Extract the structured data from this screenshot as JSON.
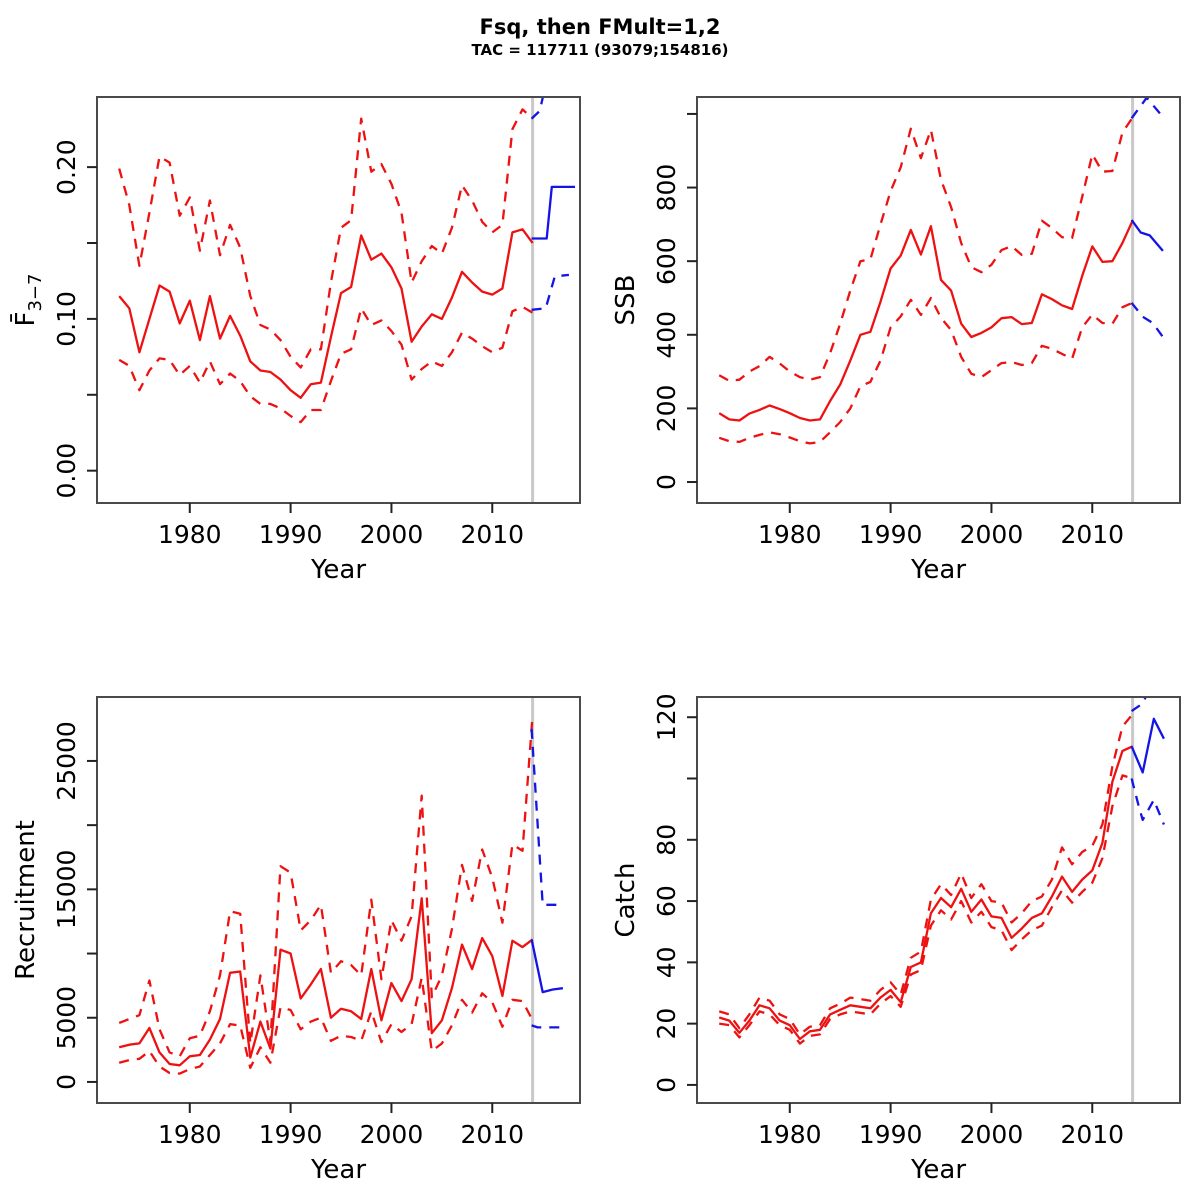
{
  "header": {
    "title": "Fsq, then FMult=1,2",
    "subtitle": "TAC = 117711 (93079;154816)"
  },
  "colors": {
    "historic": "#ee1111",
    "forecast": "#1414e6",
    "divider": "#c9c9c9",
    "frame": "#4a4a4a",
    "tick": "#222222",
    "text": "#000000"
  },
  "layout": {
    "xlim": [
      1970.8,
      2018.7
    ],
    "xticks": [
      1980,
      1990,
      2000,
      2010
    ],
    "divider_year": 2014,
    "xlabel": "Year"
  },
  "chart_data": [
    {
      "type": "line",
      "panel": "fbar",
      "ylabel": "F̄3−7",
      "ylabel_main": "F̄",
      "ylabel_sub": "3−7",
      "xlabel": "Year",
      "ylim": [
        -0.0213,
        0.2462
      ],
      "yticks": {
        "values": [
          0,
          0.05,
          0.1,
          0.15,
          0.2
        ],
        "labels": [
          "0.00",
          "",
          "0.10",
          "",
          "0.20"
        ]
      },
      "x": [
        1973,
        1974,
        1975,
        1976,
        1977,
        1978,
        1979,
        1980,
        1981,
        1982,
        1983,
        1984,
        1985,
        1986,
        1987,
        1988,
        1989,
        1990,
        1991,
        1992,
        1993,
        1994,
        1995,
        1996,
        1997,
        1998,
        1999,
        2000,
        2001,
        2002,
        2003,
        2004,
        2005,
        2006,
        2007,
        2008,
        2009,
        2010,
        2011,
        2012,
        2013,
        2014
      ],
      "series": [
        {
          "name": "median",
          "style": "solid",
          "color": "historic",
          "values": [
            0.115,
            0.107,
            0.078,
            0.1,
            0.122,
            0.118,
            0.097,
            0.112,
            0.086,
            0.115,
            0.087,
            0.102,
            0.089,
            0.072,
            0.066,
            0.065,
            0.06,
            0.053,
            0.048,
            0.057,
            0.058,
            0.088,
            0.117,
            0.121,
            0.155,
            0.139,
            0.143,
            0.134,
            0.12,
            0.085,
            0.095,
            0.103,
            0.1,
            0.114,
            0.131,
            0.124,
            0.118,
            0.116,
            0.12,
            0.157,
            0.159,
            0.15
          ]
        },
        {
          "name": "upper-ci",
          "style": "dashed",
          "color": "historic",
          "values": [
            0.199,
            0.175,
            0.135,
            0.17,
            0.207,
            0.203,
            0.168,
            0.18,
            0.145,
            0.178,
            0.142,
            0.162,
            0.147,
            0.115,
            0.096,
            0.093,
            0.086,
            0.075,
            0.068,
            0.08,
            0.08,
            0.124,
            0.16,
            0.165,
            0.232,
            0.197,
            0.202,
            0.189,
            0.17,
            0.124,
            0.138,
            0.148,
            0.143,
            0.16,
            0.188,
            0.178,
            0.164,
            0.157,
            0.162,
            0.225,
            0.238,
            0.232
          ]
        },
        {
          "name": "lower-ci",
          "style": "dashed",
          "color": "historic",
          "values": [
            0.073,
            0.069,
            0.053,
            0.066,
            0.074,
            0.073,
            0.063,
            0.069,
            0.058,
            0.072,
            0.057,
            0.064,
            0.059,
            0.049,
            0.044,
            0.044,
            0.041,
            0.036,
            0.032,
            0.04,
            0.04,
            0.059,
            0.077,
            0.08,
            0.107,
            0.096,
            0.099,
            0.092,
            0.083,
            0.06,
            0.067,
            0.072,
            0.069,
            0.078,
            0.091,
            0.087,
            0.082,
            0.078,
            0.081,
            0.105,
            0.108,
            0.104
          ]
        },
        {
          "name": "forecast-median",
          "style": "solid",
          "color": "forecast",
          "x": [
            2013.9,
            2015.4,
            2015.9,
            2018.2
          ],
          "values": [
            0.153,
            0.153,
            0.187,
            0.187
          ]
        },
        {
          "name": "forecast-upper",
          "style": "dashed",
          "color": "forecast",
          "x": [
            2013.9,
            2014.7,
            2015.6
          ],
          "values": [
            0.232,
            0.237,
            0.263
          ]
        },
        {
          "name": "forecast-lower",
          "style": "dashed",
          "color": "forecast",
          "x": [
            2013.9,
            2015.3,
            2016.2,
            2017.6
          ],
          "values": [
            0.106,
            0.107,
            0.128,
            0.129
          ]
        }
      ]
    },
    {
      "type": "line",
      "panel": "ssb",
      "ylabel": "SSB",
      "ylabel_sub": "",
      "xlabel": "Year",
      "ylim": [
        -57,
        1046
      ],
      "yticks": {
        "values": [
          0,
          200,
          400,
          600,
          800,
          1000
        ],
        "labels": [
          "0",
          "200",
          "400",
          "600",
          "800",
          ""
        ]
      },
      "x": [
        1973,
        1974,
        1975,
        1976,
        1977,
        1978,
        1979,
        1980,
        1981,
        1982,
        1983,
        1984,
        1985,
        1986,
        1987,
        1988,
        1989,
        1990,
        1991,
        1992,
        1993,
        1994,
        1995,
        1996,
        1997,
        1998,
        1999,
        2000,
        2001,
        2002,
        2003,
        2004,
        2005,
        2006,
        2007,
        2008,
        2009,
        2010,
        2011,
        2012,
        2013,
        2014
      ],
      "series": [
        {
          "name": "median",
          "style": "solid",
          "color": "historic",
          "values": [
            187,
            170,
            167,
            186,
            196,
            208,
            198,
            187,
            174,
            167,
            170,
            220,
            265,
            330,
            400,
            408,
            490,
            580,
            615,
            685,
            618,
            695,
            549,
            520,
            430,
            394,
            405,
            420,
            445,
            448,
            429,
            432,
            510,
            497,
            480,
            470,
            560,
            640,
            598,
            600,
            650,
            710
          ]
        },
        {
          "name": "upper-ci",
          "style": "dashed",
          "color": "historic",
          "values": [
            290,
            275,
            278,
            300,
            315,
            340,
            322,
            300,
            285,
            278,
            285,
            350,
            430,
            520,
            600,
            605,
            700,
            790,
            855,
            960,
            880,
            957,
            821,
            747,
            649,
            584,
            570,
            590,
            630,
            641,
            617,
            620,
            710,
            690,
            665,
            663,
            775,
            890,
            843,
            845,
            950,
            990
          ]
        },
        {
          "name": "lower-ci",
          "style": "dashed",
          "color": "historic",
          "values": [
            120,
            111,
            109,
            120,
            128,
            135,
            130,
            121,
            111,
            105,
            109,
            135,
            163,
            200,
            260,
            272,
            330,
            420,
            450,
            495,
            454,
            500,
            446,
            413,
            340,
            294,
            285,
            304,
            323,
            326,
            318,
            323,
            370,
            362,
            348,
            335,
            420,
            455,
            432,
            430,
            475,
            487
          ]
        },
        {
          "name": "forecast-median",
          "style": "solid",
          "color": "forecast",
          "x": [
            2013.9,
            2014.8,
            2015.7,
            2017.0
          ],
          "values": [
            712,
            678,
            670,
            628
          ]
        },
        {
          "name": "forecast-upper",
          "style": "dashed",
          "color": "forecast",
          "x": [
            2013.9,
            2015.4,
            2017.0
          ],
          "values": [
            988,
            1044,
            992
          ]
        },
        {
          "name": "forecast-lower",
          "style": "dashed",
          "color": "forecast",
          "x": [
            2013.9,
            2015.0,
            2016.0,
            2017.0
          ],
          "values": [
            487,
            449,
            432,
            394
          ]
        }
      ]
    },
    {
      "type": "line",
      "panel": "recruitment",
      "ylabel": "Recruitment",
      "ylabel_sub": "",
      "xlabel": "Year",
      "ylim": [
        -1640,
        29980
      ],
      "yticks": {
        "values": [
          0,
          5000,
          10000,
          15000,
          20000,
          25000
        ],
        "labels": [
          "0",
          "5000",
          "",
          "15000",
          "",
          "25000"
        ]
      },
      "x": [
        1973,
        1974,
        1975,
        1976,
        1977,
        1978,
        1979,
        1980,
        1981,
        1982,
        1983,
        1984,
        1985,
        1986,
        1987,
        1988,
        1989,
        1990,
        1991,
        1992,
        1993,
        1994,
        1995,
        1996,
        1997,
        1998,
        1999,
        2000,
        2001,
        2002,
        2003,
        2004,
        2005,
        2006,
        2007,
        2008,
        2009,
        2010,
        2011,
        2012,
        2013,
        2014
      ],
      "series": [
        {
          "name": "median",
          "style": "solid",
          "color": "historic",
          "values": [
            2700,
            2900,
            3000,
            4200,
            2300,
            1400,
            1300,
            2000,
            2100,
            3300,
            4900,
            8500,
            8600,
            1900,
            4700,
            2600,
            10300,
            10000,
            6500,
            7600,
            8800,
            5000,
            5700,
            5500,
            4900,
            8800,
            4800,
            7700,
            6300,
            8000,
            14300,
            3800,
            4800,
            7300,
            10700,
            8800,
            11200,
            9800,
            6700,
            11000,
            10500,
            11100
          ]
        },
        {
          "name": "upper-ci",
          "style": "dashed",
          "color": "historic",
          "values": [
            4600,
            4900,
            5200,
            7900,
            4100,
            2300,
            2000,
            3400,
            3600,
            5500,
            8300,
            13300,
            13100,
            3000,
            8300,
            3100,
            16800,
            16300,
            11800,
            12600,
            13800,
            8500,
            9400,
            9100,
            8300,
            14200,
            8000,
            12600,
            11000,
            12900,
            22300,
            6600,
            8300,
            11900,
            16900,
            14100,
            18100,
            15900,
            12400,
            18500,
            18000,
            28600
          ]
        },
        {
          "name": "lower-ci",
          "style": "dashed",
          "color": "historic",
          "values": [
            1500,
            1700,
            1800,
            2400,
            1200,
            700,
            650,
            1000,
            1200,
            2100,
            3000,
            4500,
            4400,
            1100,
            2700,
            1500,
            5800,
            5600,
            4100,
            4700,
            5000,
            3200,
            3600,
            3500,
            3200,
            5500,
            3100,
            4500,
            3900,
            4500,
            8100,
            2400,
            3000,
            4400,
            6400,
            5400,
            6900,
            6200,
            4300,
            6400,
            6300,
            4800
          ]
        },
        {
          "name": "forecast-median",
          "style": "solid",
          "color": "forecast",
          "x": [
            2013.9,
            2015.0,
            2016.0,
            2017.0
          ],
          "values": [
            11100,
            7000,
            7200,
            7300
          ]
        },
        {
          "name": "forecast-upper",
          "style": "dashed",
          "color": "forecast",
          "x": [
            2013.9,
            2015.0,
            2017.0
          ],
          "values": [
            27500,
            13800,
            13800
          ]
        },
        {
          "name": "forecast-lower",
          "style": "dashed",
          "color": "forecast",
          "x": [
            2013.9,
            2014.5,
            2017.0
          ],
          "values": [
            4400,
            4250,
            4250
          ]
        }
      ]
    },
    {
      "type": "line",
      "panel": "catch",
      "ylabel": "Catch",
      "ylabel_sub": "",
      "xlabel": "Year",
      "ylim": [
        -5.9,
        126.6
      ],
      "yticks": {
        "values": [
          0,
          20,
          40,
          60,
          80,
          100,
          120
        ],
        "labels": [
          "0",
          "20",
          "40",
          "60",
          "80",
          "",
          "120"
        ]
      },
      "x": [
        1973,
        1974,
        1975,
        1976,
        1977,
        1978,
        1979,
        1980,
        1981,
        1982,
        1983,
        1984,
        1985,
        1986,
        1987,
        1988,
        1989,
        1990,
        1991,
        1992,
        1993,
        1994,
        1995,
        1996,
        1997,
        1998,
        1999,
        2000,
        2001,
        2002,
        2003,
        2004,
        2005,
        2006,
        2007,
        2008,
        2009,
        2010,
        2011,
        2012,
        2013,
        2014
      ],
      "series": [
        {
          "name": "median",
          "style": "solid",
          "color": "historic",
          "values": [
            22,
            21,
            17,
            21,
            26,
            25,
            21,
            19.5,
            15,
            17.5,
            18,
            23,
            24.5,
            26,
            25.5,
            25,
            28.5,
            31,
            27,
            38.5,
            40,
            56,
            61,
            58,
            64,
            56.5,
            60.5,
            55,
            54.5,
            48,
            51,
            54.5,
            56,
            61.5,
            68,
            63,
            67,
            70,
            79,
            99,
            109,
            110.5
          ]
        },
        {
          "name": "upper-ci",
          "style": "dashed",
          "color": "historic",
          "values": [
            24,
            23,
            18.5,
            23,
            28.5,
            27.5,
            23,
            21.5,
            16.5,
            19,
            19.5,
            25,
            26.5,
            28.5,
            28,
            27.5,
            31,
            33.5,
            29.5,
            41.5,
            43.5,
            60.5,
            65.5,
            62,
            69,
            61,
            65.5,
            60,
            59.5,
            53,
            56,
            60,
            61.5,
            67,
            77.5,
            72,
            76,
            78,
            85,
            104,
            117,
            121
          ]
        },
        {
          "name": "lower-ci",
          "style": "dashed",
          "color": "historic",
          "values": [
            20,
            19.5,
            15.5,
            19.5,
            24,
            23,
            19.5,
            18,
            13.5,
            16,
            16.5,
            21.5,
            23,
            24,
            23.5,
            23,
            26.5,
            29,
            25.5,
            36,
            37.5,
            52,
            57,
            54,
            60,
            53,
            56.5,
            51.5,
            50.5,
            44,
            47.5,
            50.5,
            52,
            58,
            63.5,
            59.5,
            63,
            66,
            74,
            91,
            101,
            100
          ]
        },
        {
          "name": "forecast-median",
          "style": "solid",
          "color": "forecast",
          "x": [
            2013.9,
            2015.0,
            2016.1,
            2017.1
          ],
          "values": [
            110.5,
            102,
            119.5,
            113
          ]
        },
        {
          "name": "forecast-upper",
          "style": "dashed",
          "color": "forecast",
          "x": [
            2013.9,
            2015.0,
            2015.5
          ],
          "values": [
            122,
            124.5,
            128
          ]
        },
        {
          "name": "forecast-lower",
          "style": "dashed",
          "color": "forecast",
          "x": [
            2013.9,
            2014.6,
            2015.0,
            2016.1,
            2017.1
          ],
          "values": [
            100,
            91,
            86.5,
            93,
            85
          ]
        }
      ]
    }
  ]
}
